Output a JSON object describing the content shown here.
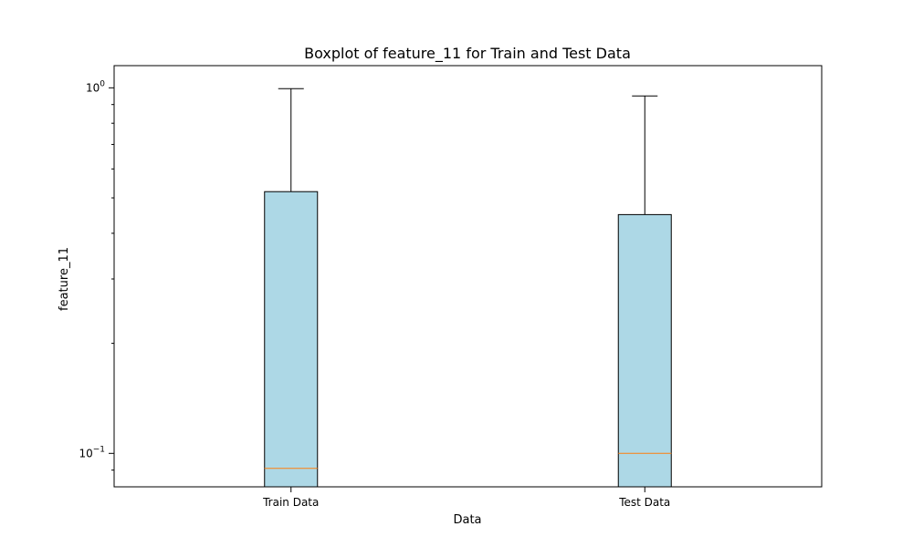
{
  "chart_data": {
    "type": "boxplot",
    "title": "Boxplot of feature_11 for Train and Test Data",
    "xlabel": "Data",
    "ylabel": "feature_11",
    "yscale": "log",
    "ylim": [
      0.081,
      1.15
    ],
    "grid": false,
    "yticks": [
      {
        "value": 1.0,
        "base": "10",
        "exp": "0"
      },
      {
        "value": 0.1,
        "base": "10",
        "exp": "−1"
      }
    ],
    "categories": [
      "Train Data",
      "Test Data"
    ],
    "boxes": [
      {
        "category": "Train Data",
        "q1": 0.081,
        "median": 0.091,
        "q3": 0.52,
        "whisker_high": 0.995
      },
      {
        "category": "Test Data",
        "q1": 0.081,
        "median": 0.1,
        "q3": 0.45,
        "whisker_high": 0.95
      }
    ],
    "colors": {
      "box_fill": "#add8e6",
      "box_edge": "#000000",
      "median": "#ff7f0e"
    }
  }
}
